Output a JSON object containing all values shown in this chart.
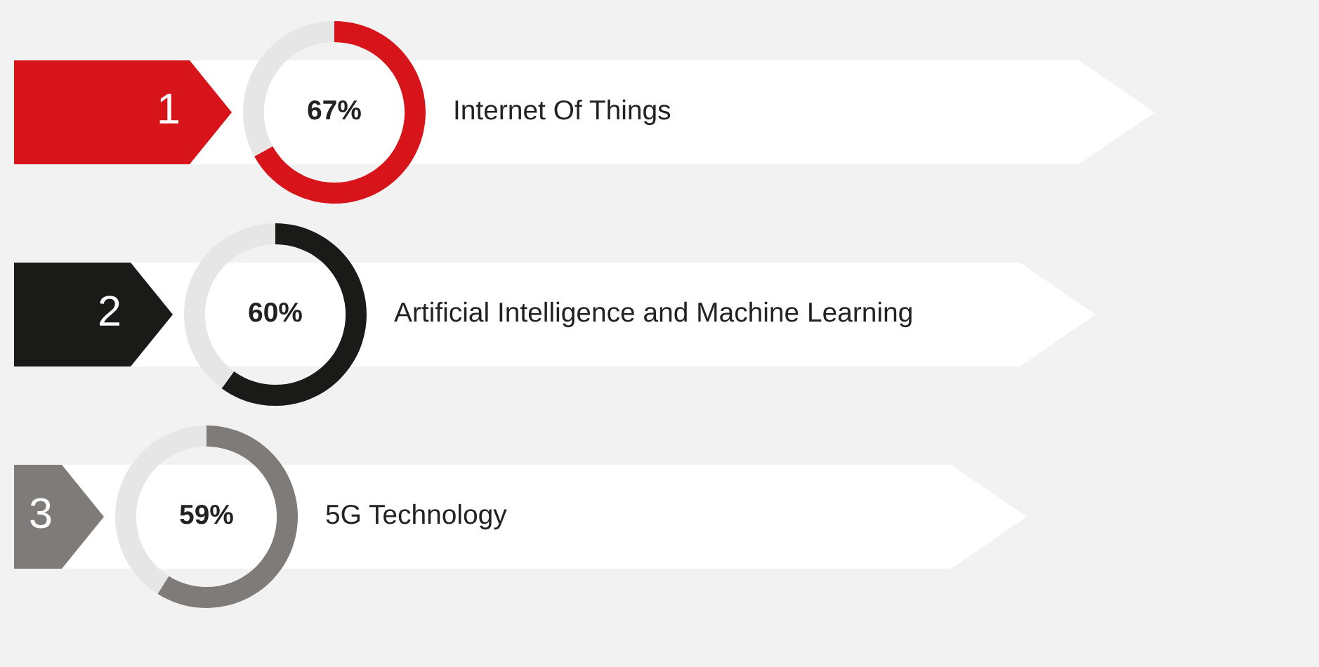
{
  "chart_data": [
    {
      "type": "donut",
      "title": "Internet Of Things",
      "annotations": [
        "1"
      ],
      "categories": [
        null,
        null
      ],
      "values": [
        67,
        33
      ],
      "colors": [
        "#d7141a",
        "#e6e6e6"
      ],
      "value_labels": [
        "67%",
        null
      ]
    },
    {
      "type": "donut",
      "title": "Artificial Intelligence and Machine Learning",
      "annotations": [
        "2"
      ],
      "categories": [
        null,
        null
      ],
      "values": [
        60,
        40
      ],
      "colors": [
        "#1a1a18",
        "#e6e6e6"
      ],
      "value_labels": [
        "60%",
        null
      ]
    },
    {
      "type": "donut",
      "title": "5G Technology",
      "annotations": [
        "3"
      ],
      "categories": [
        null,
        null
      ],
      "values": [
        59,
        41
      ],
      "colors": [
        "#7f7b79",
        "#e6e6e6"
      ],
      "value_labels": [
        "59%",
        null
      ]
    }
  ]
}
